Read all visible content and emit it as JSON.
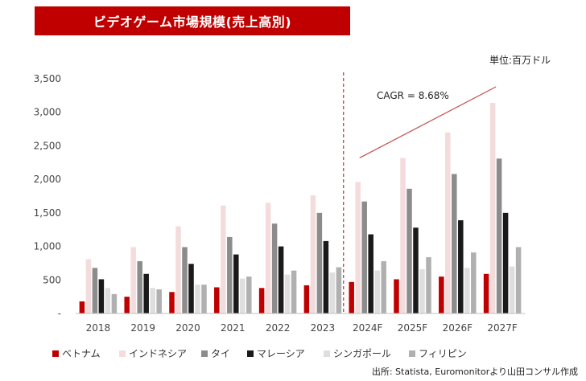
{
  "header": {
    "title": "ビデオゲーム市場規模(売上高別)",
    "unit": "単位:百万ドル",
    "source": "出所: Statista, Euromonitorより山田コンサル作成"
  },
  "chart_data": {
    "type": "bar",
    "title": "ビデオゲーム市場規模(売上高別)",
    "xlabel": "",
    "ylabel": "",
    "ylim": [
      0,
      3500
    ],
    "yticks": [
      0,
      500,
      1000,
      1500,
      2000,
      2500,
      3000,
      3500
    ],
    "ytick_labels": [
      "-",
      "500",
      "1,000",
      "1,500",
      "2,000",
      "2,500",
      "3,000",
      "3,500"
    ],
    "categories": [
      "2018",
      "2019",
      "2020",
      "2021",
      "2022",
      "2023",
      "2024F",
      "2025F",
      "2026F",
      "2027F"
    ],
    "series": [
      {
        "name": "ベトナム",
        "color": "#c00000",
        "values": [
          180,
          250,
          320,
          390,
          380,
          420,
          470,
          510,
          550,
          590
        ]
      },
      {
        "name": "インドネシア",
        "color": "#f4dcdc",
        "values": [
          810,
          990,
          1300,
          1610,
          1650,
          1760,
          1960,
          2320,
          2700,
          3140
        ]
      },
      {
        "name": "タイ",
        "color": "#8c8c8c",
        "values": [
          680,
          780,
          990,
          1140,
          1340,
          1500,
          1670,
          1860,
          2080,
          2310
        ]
      },
      {
        "name": "マレーシア",
        "color": "#1a1a1a",
        "values": [
          510,
          590,
          740,
          880,
          1000,
          1080,
          1180,
          1280,
          1390,
          1500
        ]
      },
      {
        "name": "シンガポール",
        "color": "#dedede",
        "values": [
          380,
          380,
          430,
          520,
          580,
          610,
          640,
          660,
          680,
          700
        ]
      },
      {
        "name": "フィリピン",
        "color": "#b0b0b0",
        "values": [
          290,
          360,
          430,
          550,
          640,
          690,
          780,
          840,
          910,
          990
        ]
      }
    ],
    "forecast_start": "2024F",
    "annotations": [
      {
        "text": "CAGR = 8.68%"
      }
    ],
    "grid": false,
    "legend_placement": "bottom"
  }
}
